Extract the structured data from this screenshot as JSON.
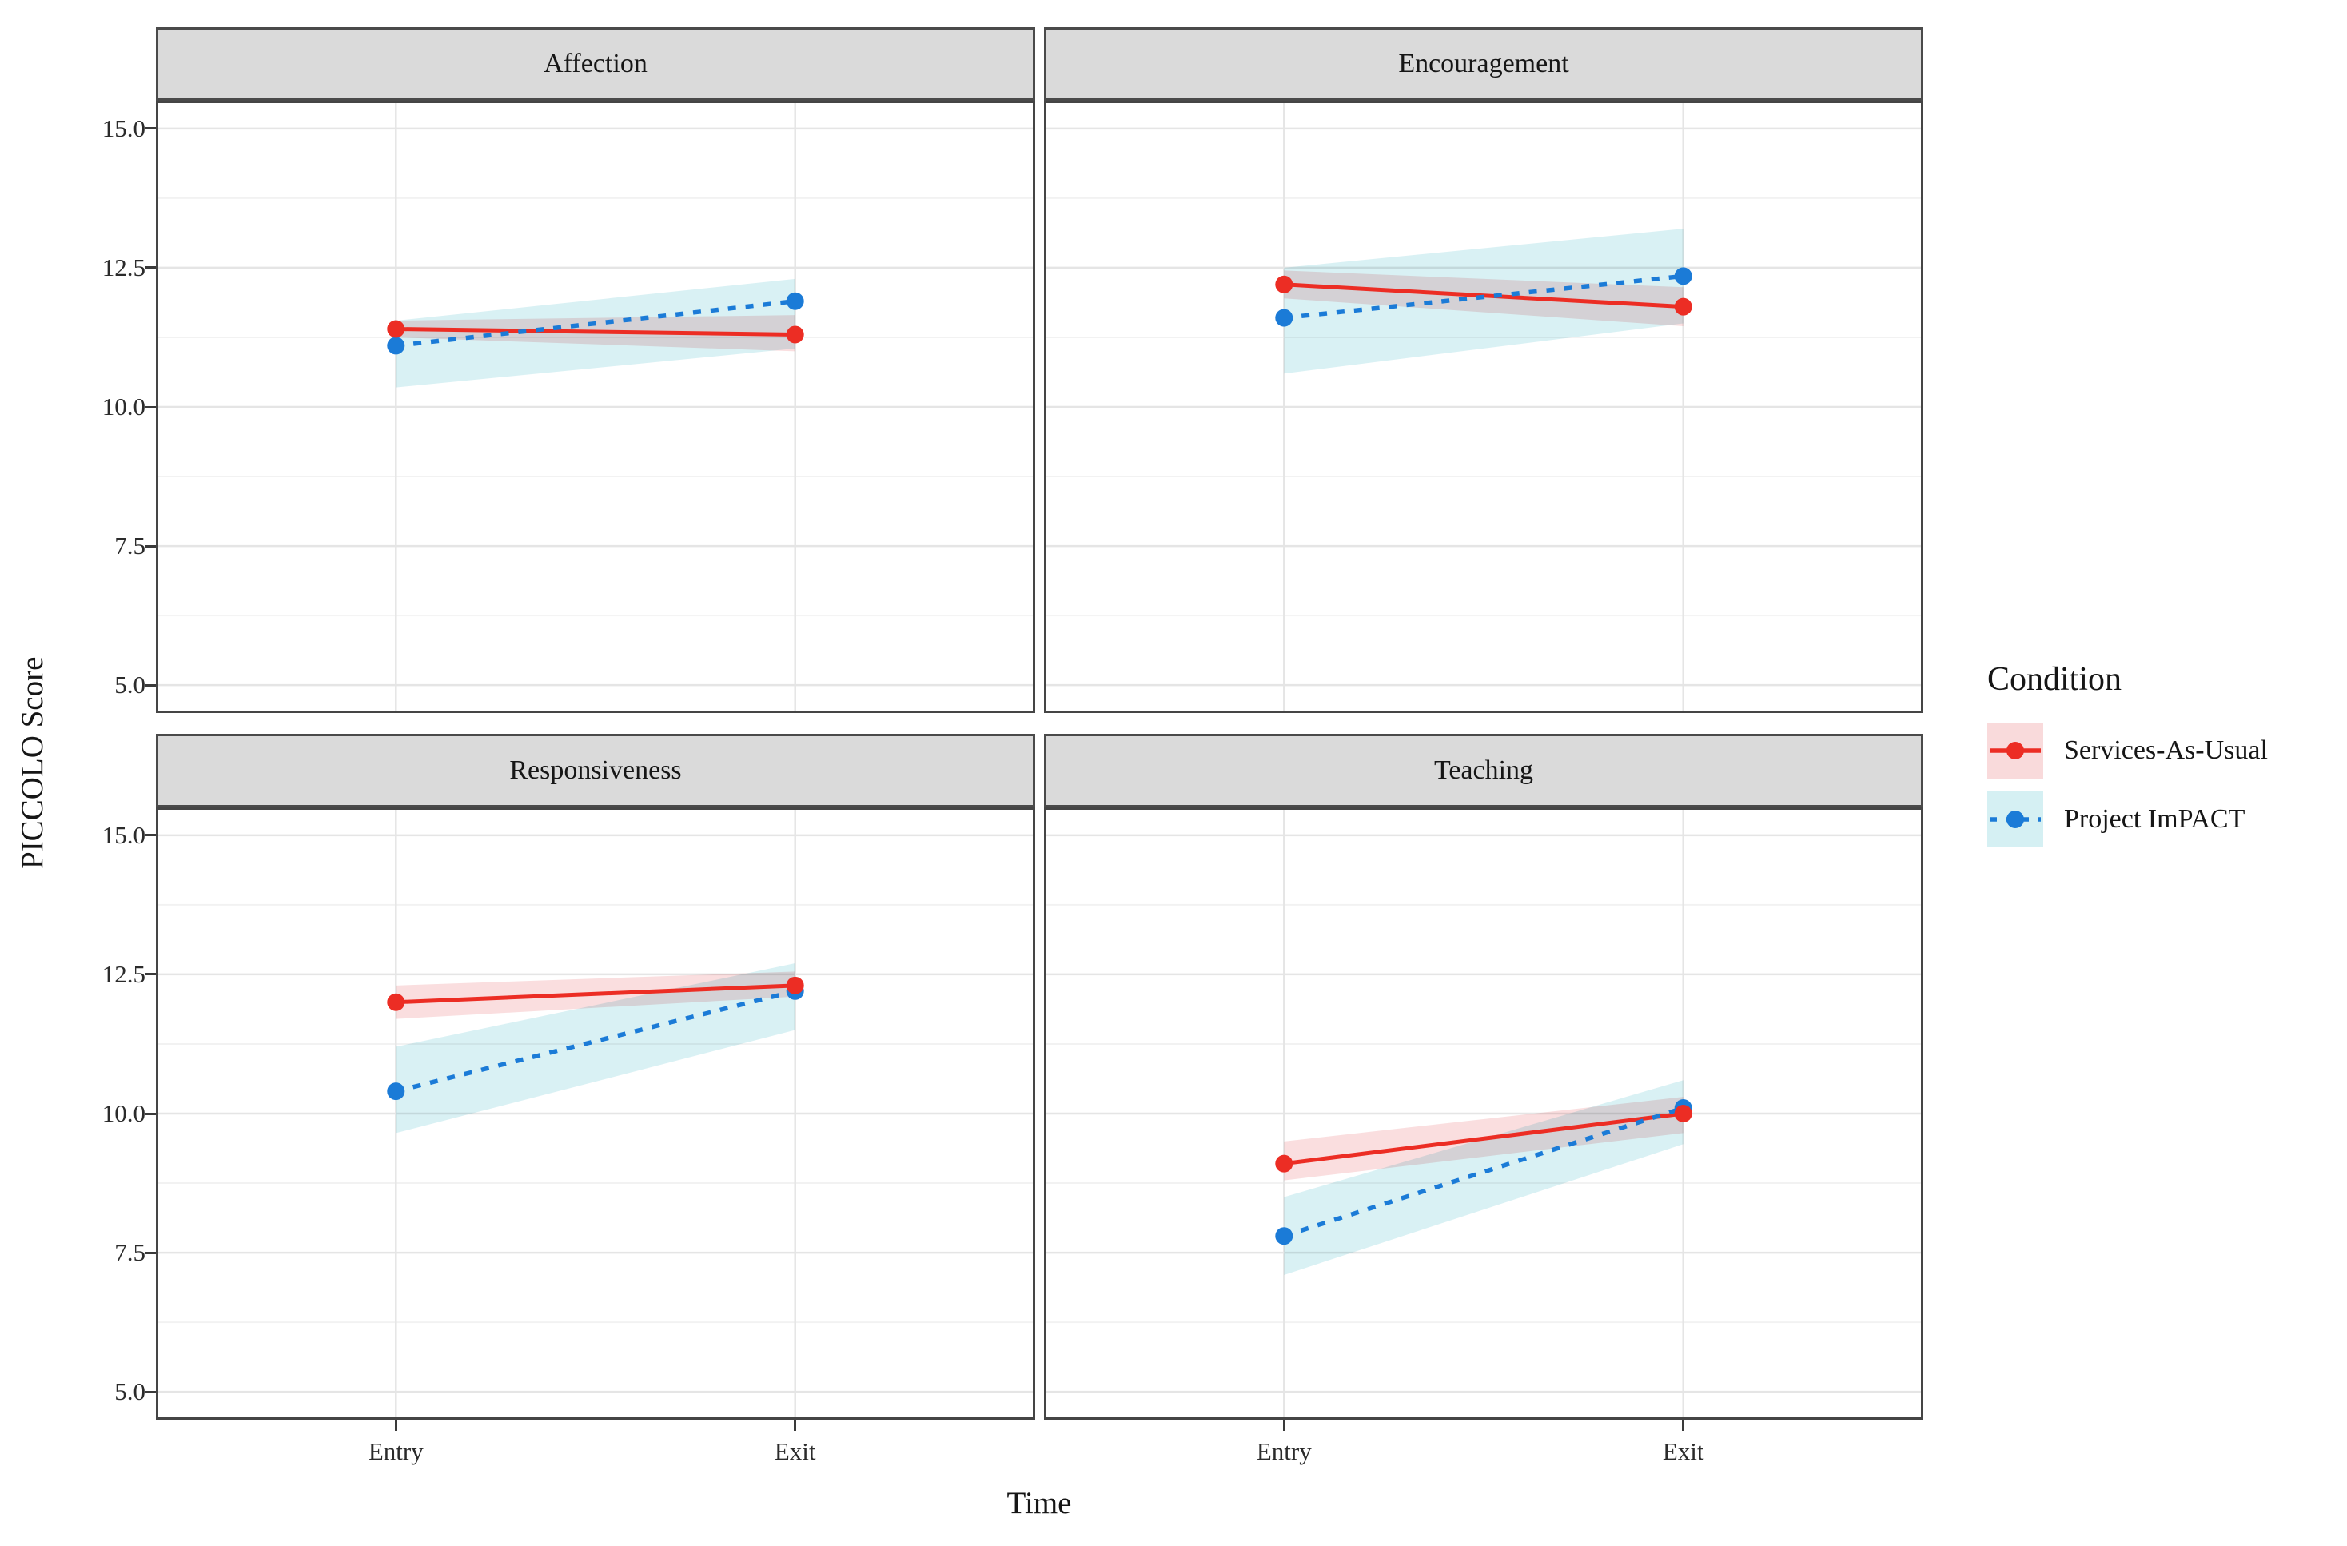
{
  "chart_data": {
    "type": "line",
    "title": "",
    "xlabel": "Time",
    "ylabel": "PICCOLO Score",
    "x_categories": [
      "Entry",
      "Exit"
    ],
    "ytick_labels": [
      "15.0",
      "12.5",
      "10.0",
      "7.5",
      "5.0"
    ],
    "ytick_values": [
      15.0,
      12.5,
      10.0,
      7.5,
      5.0
    ],
    "minor_gridlines": [
      13.75,
      11.25,
      8.75,
      6.25
    ],
    "ylim": [
      4.5,
      15.5
    ],
    "grid": true,
    "panel_background": "#ffffff",
    "strip_background": "#DADADA",
    "legend": {
      "title": "Condition",
      "position": "right",
      "entries": [
        {
          "name": "sau",
          "label": "Services-As-Usual",
          "color": "#EC2D24",
          "linestyle": "solid",
          "ribbon": "#F9DADB"
        },
        {
          "name": "impact",
          "label": "Project ImPACT",
          "color": "#1B7BD7",
          "linestyle": "dashed",
          "ribbon": "#D5F0F3"
        }
      ]
    },
    "facets": [
      {
        "title": "Affection",
        "series": [
          {
            "name": "sau",
            "label": "Services-As-Usual",
            "values": [
              11.4,
              11.3
            ],
            "ribbon_lo": [
              11.25,
              11.0
            ],
            "ribbon_hi": [
              11.55,
              11.65
            ]
          },
          {
            "name": "impact",
            "label": "Project ImPACT",
            "values": [
              11.1,
              11.9
            ],
            "ribbon_lo": [
              10.35,
              11.05
            ],
            "ribbon_hi": [
              11.55,
              12.3
            ]
          }
        ]
      },
      {
        "title": "Encouragement",
        "series": [
          {
            "name": "sau",
            "label": "Services-As-Usual",
            "values": [
              12.2,
              11.8
            ],
            "ribbon_lo": [
              11.95,
              11.45
            ],
            "ribbon_hi": [
              12.45,
              12.15
            ]
          },
          {
            "name": "impact",
            "label": "Project ImPACT",
            "values": [
              11.6,
              12.35
            ],
            "ribbon_lo": [
              10.6,
              11.5
            ],
            "ribbon_hi": [
              12.5,
              13.2
            ]
          }
        ]
      },
      {
        "title": "Responsiveness",
        "series": [
          {
            "name": "sau",
            "label": "Services-As-Usual",
            "values": [
              12.0,
              12.3
            ],
            "ribbon_lo": [
              11.7,
              12.1
            ],
            "ribbon_hi": [
              12.3,
              12.55
            ]
          },
          {
            "name": "impact",
            "label": "Project ImPACT",
            "values": [
              10.4,
              12.2
            ],
            "ribbon_lo": [
              9.65,
              11.5
            ],
            "ribbon_hi": [
              11.2,
              12.7
            ]
          }
        ]
      },
      {
        "title": "Teaching",
        "series": [
          {
            "name": "sau",
            "label": "Services-As-Usual",
            "values": [
              9.1,
              10.0
            ],
            "ribbon_lo": [
              8.8,
              9.65
            ],
            "ribbon_hi": [
              9.5,
              10.3
            ]
          },
          {
            "name": "impact",
            "label": "Project ImPACT",
            "values": [
              7.8,
              10.1
            ],
            "ribbon_lo": [
              7.1,
              9.45
            ],
            "ribbon_hi": [
              8.5,
              10.6
            ]
          }
        ]
      }
    ]
  }
}
